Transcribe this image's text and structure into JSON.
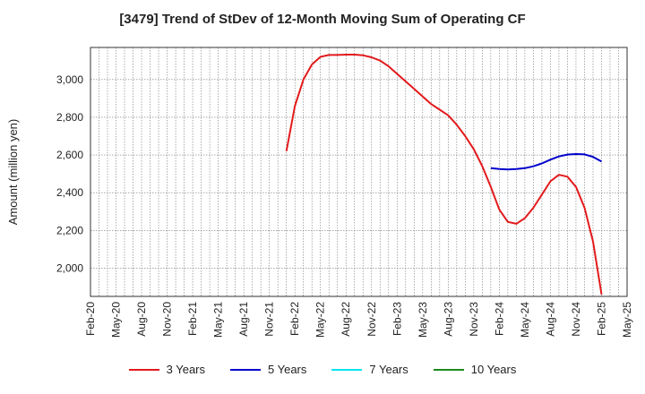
{
  "chart_data": {
    "type": "line",
    "title": "[3479]  Trend of StDev of 12-Month Moving Sum of Operating CF",
    "xlabel": "",
    "ylabel": "Amount (million yen)",
    "x_tick_labels": [
      "Feb-20",
      "May-20",
      "Aug-20",
      "Nov-20",
      "Feb-21",
      "May-21",
      "Aug-21",
      "Nov-21",
      "Feb-22",
      "May-22",
      "Aug-22",
      "Nov-22",
      "Feb-23",
      "May-23",
      "Aug-23",
      "Nov-23",
      "Feb-24",
      "May-24",
      "Aug-24",
      "Nov-24",
      "Feb-25",
      "May-25"
    ],
    "y_ticks": [
      2000,
      2200,
      2400,
      2600,
      2800,
      3000
    ],
    "y_tick_labels": [
      "2,000",
      "2,200",
      "2,400",
      "2,600",
      "2,800",
      "3,000"
    ],
    "ylim": [
      1850,
      3170
    ],
    "x_domain": [
      "2020-02",
      "2025-05"
    ],
    "grid": true,
    "legend_position": "bottom",
    "series": [
      {
        "name": "3 Years",
        "color": "#e31a1c",
        "points": [
          [
            "2022-01",
            2620
          ],
          [
            "2022-02",
            2860
          ],
          [
            "2022-03",
            3000
          ],
          [
            "2022-04",
            3080
          ],
          [
            "2022-05",
            3120
          ],
          [
            "2022-06",
            3130
          ],
          [
            "2022-07",
            3130
          ],
          [
            "2022-08",
            3132
          ],
          [
            "2022-09",
            3132
          ],
          [
            "2022-10",
            3128
          ],
          [
            "2022-11",
            3118
          ],
          [
            "2022-12",
            3100
          ],
          [
            "2023-01",
            3070
          ],
          [
            "2023-02",
            3030
          ],
          [
            "2023-03",
            2990
          ],
          [
            "2023-04",
            2950
          ],
          [
            "2023-05",
            2910
          ],
          [
            "2023-06",
            2870
          ],
          [
            "2023-07",
            2840
          ],
          [
            "2023-08",
            2810
          ],
          [
            "2023-09",
            2760
          ],
          [
            "2023-10",
            2700
          ],
          [
            "2023-11",
            2630
          ],
          [
            "2023-12",
            2540
          ],
          [
            "2024-01",
            2430
          ],
          [
            "2024-02",
            2310
          ],
          [
            "2024-03",
            2245
          ],
          [
            "2024-04",
            2235
          ],
          [
            "2024-05",
            2265
          ],
          [
            "2024-06",
            2320
          ],
          [
            "2024-07",
            2390
          ],
          [
            "2024-08",
            2460
          ],
          [
            "2024-09",
            2495
          ],
          [
            "2024-10",
            2485
          ],
          [
            "2024-11",
            2430
          ],
          [
            "2024-12",
            2320
          ],
          [
            "2025-01",
            2140
          ],
          [
            "2025-02",
            1860
          ]
        ]
      },
      {
        "name": "5 Years",
        "color": "#0000cc",
        "points": [
          [
            "2024-01",
            2530
          ],
          [
            "2024-02",
            2525
          ],
          [
            "2024-03",
            2523
          ],
          [
            "2024-04",
            2525
          ],
          [
            "2024-05",
            2530
          ],
          [
            "2024-06",
            2540
          ],
          [
            "2024-07",
            2555
          ],
          [
            "2024-08",
            2575
          ],
          [
            "2024-09",
            2592
          ],
          [
            "2024-10",
            2602
          ],
          [
            "2024-11",
            2605
          ],
          [
            "2024-12",
            2603
          ],
          [
            "2025-01",
            2590
          ],
          [
            "2025-02",
            2565
          ]
        ]
      },
      {
        "name": "7 Years",
        "color": "#00e5ee",
        "points": []
      },
      {
        "name": "10 Years",
        "color": "#1a8a1a",
        "points": []
      }
    ]
  }
}
